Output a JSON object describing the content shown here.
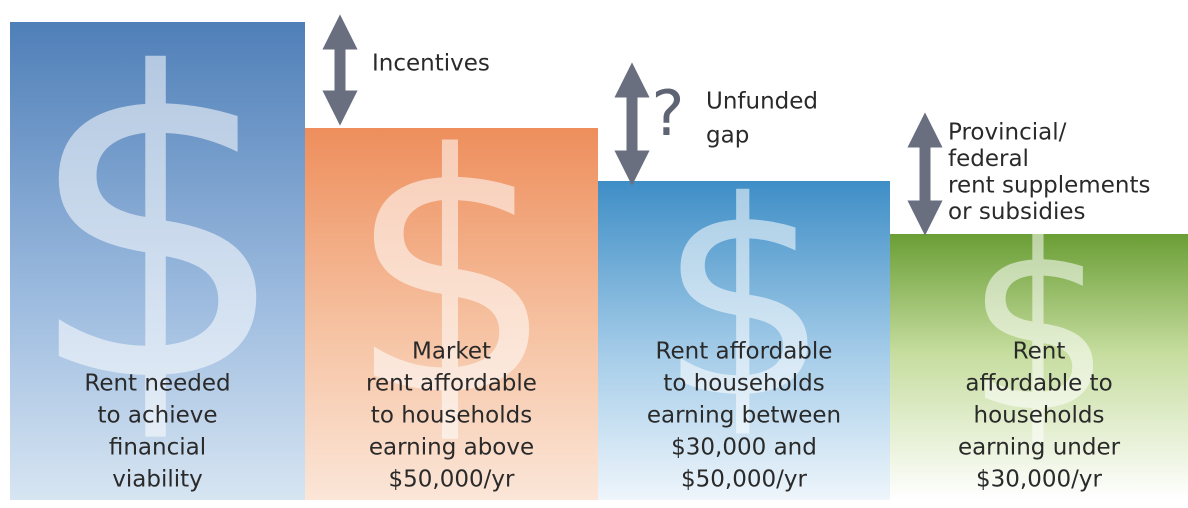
{
  "symbol": "$",
  "columns": [
    {
      "lines": [
        "Rent needed",
        "to achieve",
        "financial",
        "viability"
      ]
    },
    {
      "lines": [
        "Market",
        "rent affordable",
        "to households",
        "earning above",
        "$50,000/yr"
      ]
    },
    {
      "lines": [
        "Rent affordable",
        "to households",
        "earning between",
        "$30,000 and",
        "$50,000/yr"
      ]
    },
    {
      "lines": [
        "Rent",
        "affordable to",
        "households",
        "earning under",
        "$30,000/yr"
      ]
    }
  ],
  "gaps": [
    {
      "lines": [
        "Incentives"
      ]
    },
    {
      "mark": "?",
      "lines": [
        "Unfunded",
        "gap"
      ]
    },
    {
      "lines": [
        "Provincial/",
        "federal",
        "rent supplements",
        "or subsidies"
      ]
    }
  ]
}
